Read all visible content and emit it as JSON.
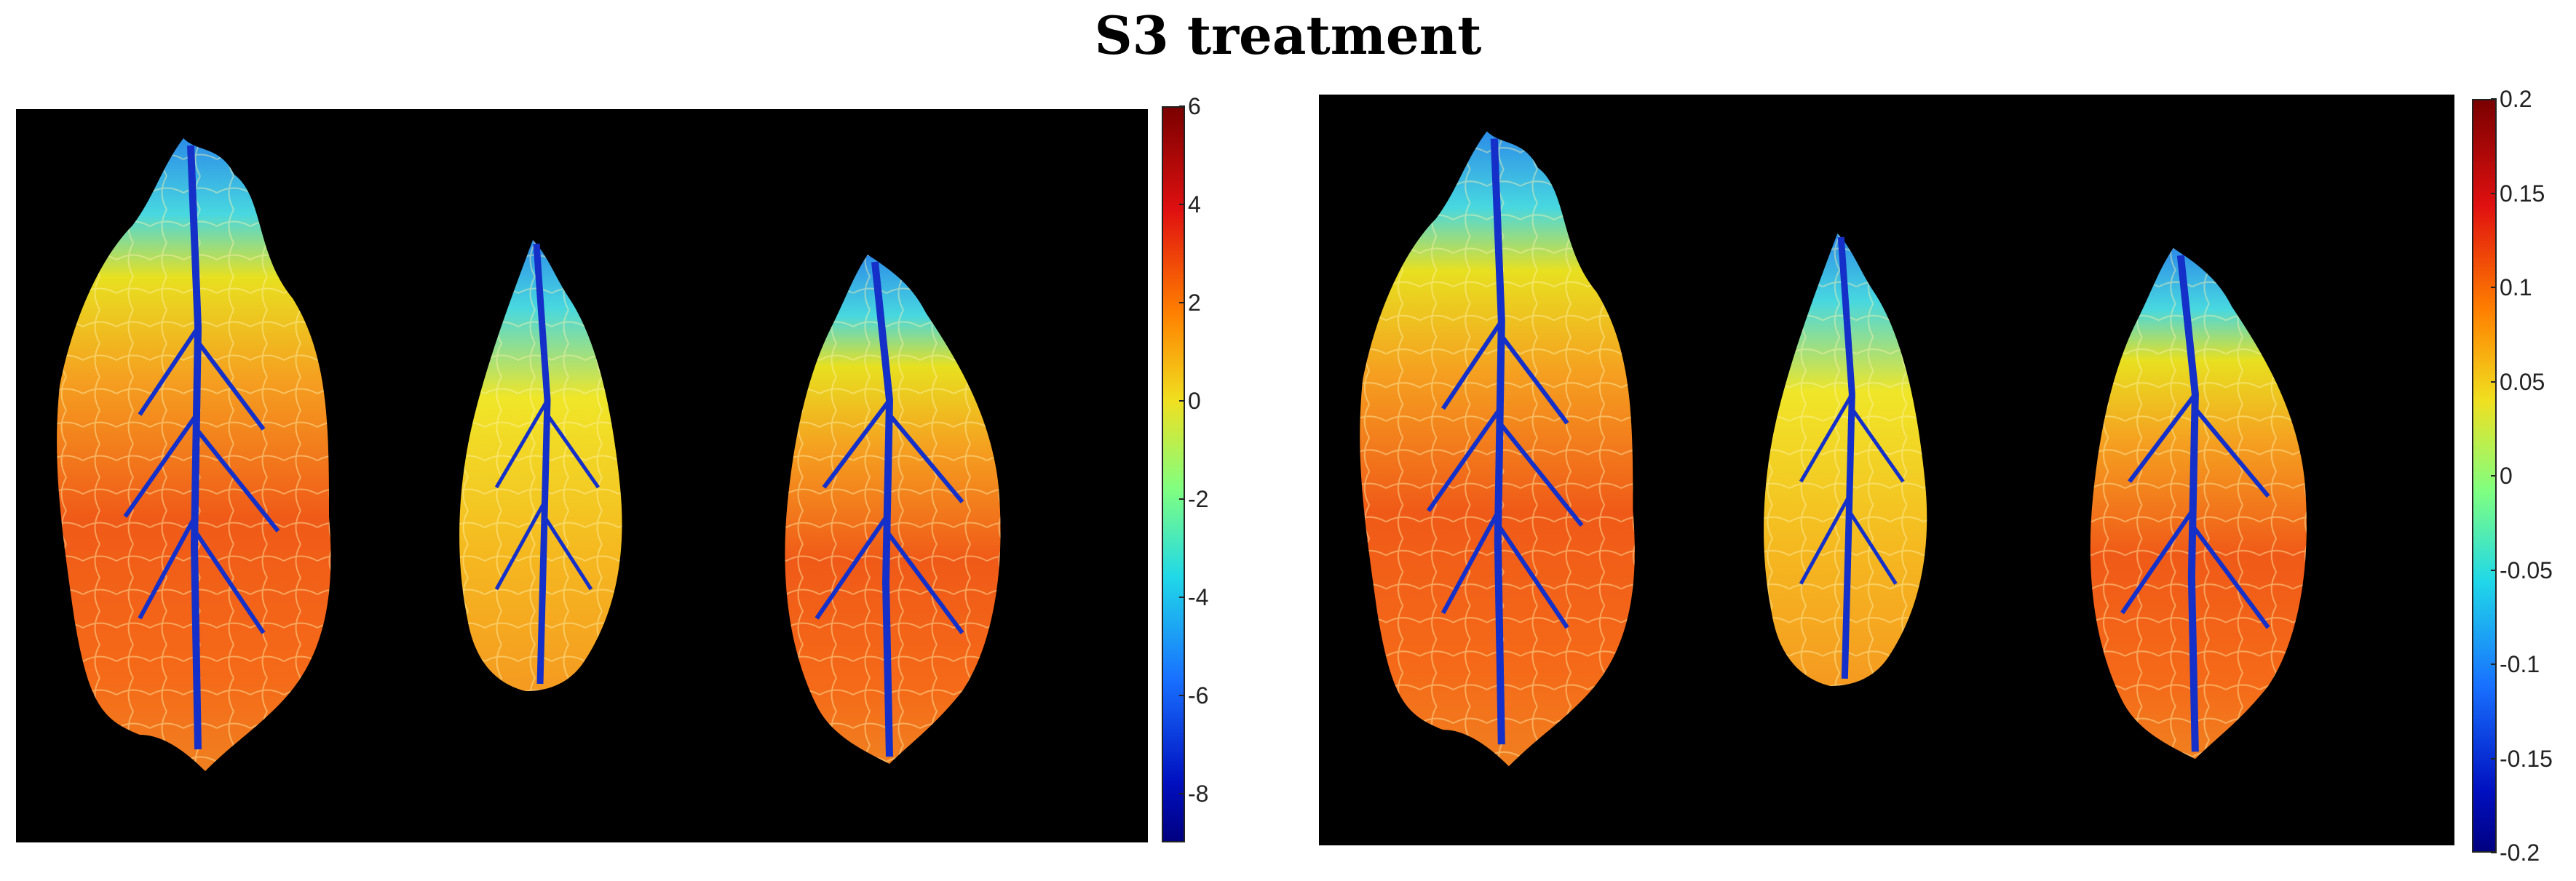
{
  "title": "S3 treatment",
  "panels": [
    {
      "name": "left",
      "colorbar_ticks": [
        "6",
        "4",
        "2",
        "0",
        "-2",
        "-4",
        "-6",
        "-8"
      ],
      "range": [
        -9,
        6
      ]
    },
    {
      "name": "right",
      "colorbar_ticks": [
        "0.2",
        "0.15",
        "0.1",
        "0.05",
        "0",
        "-0.05",
        "-0.1",
        "-0.15",
        "-0.2"
      ],
      "range": [
        -0.2,
        0.2
      ]
    }
  ],
  "colors": {
    "background": "#000000",
    "leaf_warm": "#f25a1a",
    "leaf_yellow": "#f5d820",
    "vein_blue": "#1430c8",
    "tip_cyan": "#38d0e8"
  }
}
